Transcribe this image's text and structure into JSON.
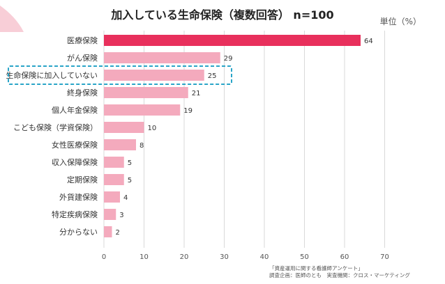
{
  "header": {
    "title": "加入している生命保険（複数回答） n=100",
    "unit": "単位（%）"
  },
  "chart_data": {
    "type": "bar",
    "orientation": "horizontal",
    "title": "加入している生命保険（複数回答） n=100",
    "unit_label": "単位（%）",
    "categories": [
      "医療保険",
      "がん保険",
      "生命保険に加入していない",
      "終身保険",
      "個人年金保険",
      "こども保険（学資保険）",
      "女性医療保険",
      "収入保障保険",
      "定期保険",
      "外貨建保険",
      "特定疾病保険",
      "分からない"
    ],
    "values": [
      64,
      29,
      25,
      21,
      19,
      10,
      8,
      5,
      5,
      4,
      3,
      2
    ],
    "highlight_index": 0,
    "boxed_index": 2,
    "xlim": [
      0,
      70
    ],
    "xticks": [
      "0",
      "10",
      "20",
      "30",
      "40",
      "50",
      "60",
      "70"
    ],
    "grid": true,
    "colors": {
      "highlight": "#e8305c",
      "bar": "#f4aabd",
      "grid": "#d9d9d9",
      "box": "#2aa5c8",
      "deco": "#f7c6d0"
    }
  },
  "source": {
    "line1": "「資産運用に関する看護師アンケート」",
    "line2": "調査企画：医師のとも　実査機関：クロス・マーケティング"
  }
}
